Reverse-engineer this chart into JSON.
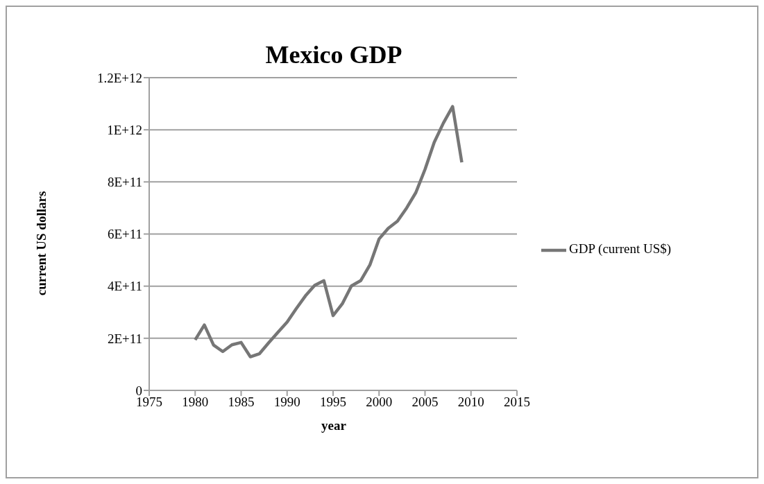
{
  "chart_data": {
    "type": "line",
    "title": "Mexico GDP",
    "xlabel": "year",
    "ylabel": "current US dollars",
    "x": [
      1980,
      1981,
      1982,
      1983,
      1984,
      1985,
      1986,
      1987,
      1988,
      1989,
      1990,
      1991,
      1992,
      1993,
      1994,
      1995,
      1996,
      1997,
      1998,
      1999,
      2000,
      2001,
      2002,
      2003,
      2004,
      2005,
      2006,
      2007,
      2008,
      2009
    ],
    "series": [
      {
        "name": "GDP (current US$)",
        "color": "#767676",
        "values": [
          194000000000.0,
          251000000000.0,
          174000000000.0,
          149000000000.0,
          175000000000.0,
          184000000000.0,
          129000000000.0,
          141000000000.0,
          183000000000.0,
          223000000000.0,
          262000000000.0,
          314000000000.0,
          363000000000.0,
          403000000000.0,
          421000000000.0,
          287000000000.0,
          332000000000.0,
          401000000000.0,
          421000000000.0,
          481000000000.0,
          581000000000.0,
          622000000000.0,
          649000000000.0,
          700000000000.0,
          759000000000.0,
          848000000000.0,
          952000000000.0,
          1026000000000.0,
          1089000000000.0,
          875000000000.0
        ]
      }
    ],
    "xlim": [
      1975,
      2015
    ],
    "xticks": [
      1975,
      1980,
      1985,
      1990,
      1995,
      2000,
      2005,
      2010,
      2015
    ],
    "ylim": [
      0,
      1200000000000.0
    ],
    "yticks": [
      0,
      {
        "value": 200000000000.0,
        "label": "2E+11"
      },
      {
        "value": 400000000000.0,
        "label": "4E+11"
      },
      {
        "value": 600000000000.0,
        "label": "6E+11"
      },
      {
        "value": 800000000000.0,
        "label": "8E+11"
      },
      {
        "value": 1000000000000.0,
        "label": "1E+12"
      },
      {
        "value": 1200000000000.0,
        "label": "1.2E+12"
      }
    ],
    "grid": "y",
    "legend": "right",
    "marker": "none",
    "line_style": "solid"
  }
}
